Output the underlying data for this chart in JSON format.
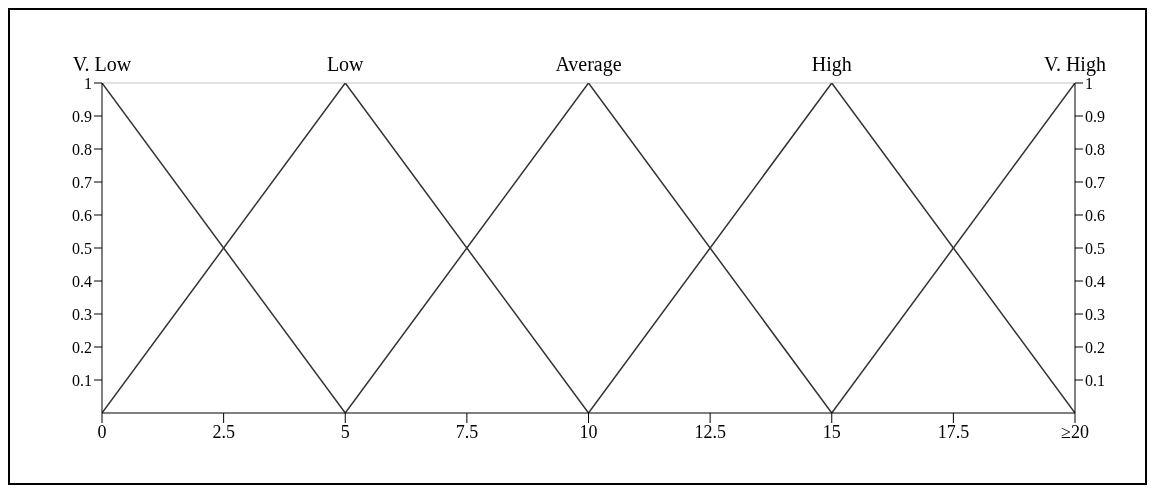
{
  "chart_data": {
    "type": "line",
    "xlim": [
      0,
      20
    ],
    "xticks": [
      0,
      2.5,
      5,
      7.5,
      10,
      12.5,
      15,
      17.5,
      {
        "value": 20,
        "label": "≥20"
      }
    ],
    "ylim": [
      0,
      1
    ],
    "yticks": [
      0.1,
      0.2,
      0.3,
      0.4,
      0.5,
      0.6,
      0.7,
      0.8,
      0.9,
      1
    ],
    "y2lim": [
      0,
      1
    ],
    "y2ticks": [
      0.1,
      0.2,
      0.3,
      0.4,
      0.5,
      0.6,
      0.7,
      0.8,
      0.9,
      1
    ],
    "grid": false,
    "legend": false,
    "marker": "none",
    "line_style": "solid",
    "ref_lines": [
      {
        "axis": "y",
        "value": 1,
        "color": "#d9d9d9"
      }
    ],
    "series": [
      {
        "name": "V. Low",
        "color": "#333333",
        "x": [
          0,
          5
        ],
        "values": [
          1,
          0
        ]
      },
      {
        "name": "Low",
        "color": "#333333",
        "x": [
          0,
          5,
          10
        ],
        "values": [
          0,
          1,
          0
        ]
      },
      {
        "name": "Average",
        "color": "#333333",
        "x": [
          5,
          10,
          15
        ],
        "values": [
          0,
          1,
          0
        ]
      },
      {
        "name": "High",
        "color": "#333333",
        "x": [
          10,
          15,
          20
        ],
        "values": [
          0,
          1,
          0
        ]
      },
      {
        "name": "V. High",
        "color": "#333333",
        "x": [
          15,
          20
        ],
        "values": [
          0,
          1
        ]
      }
    ]
  }
}
